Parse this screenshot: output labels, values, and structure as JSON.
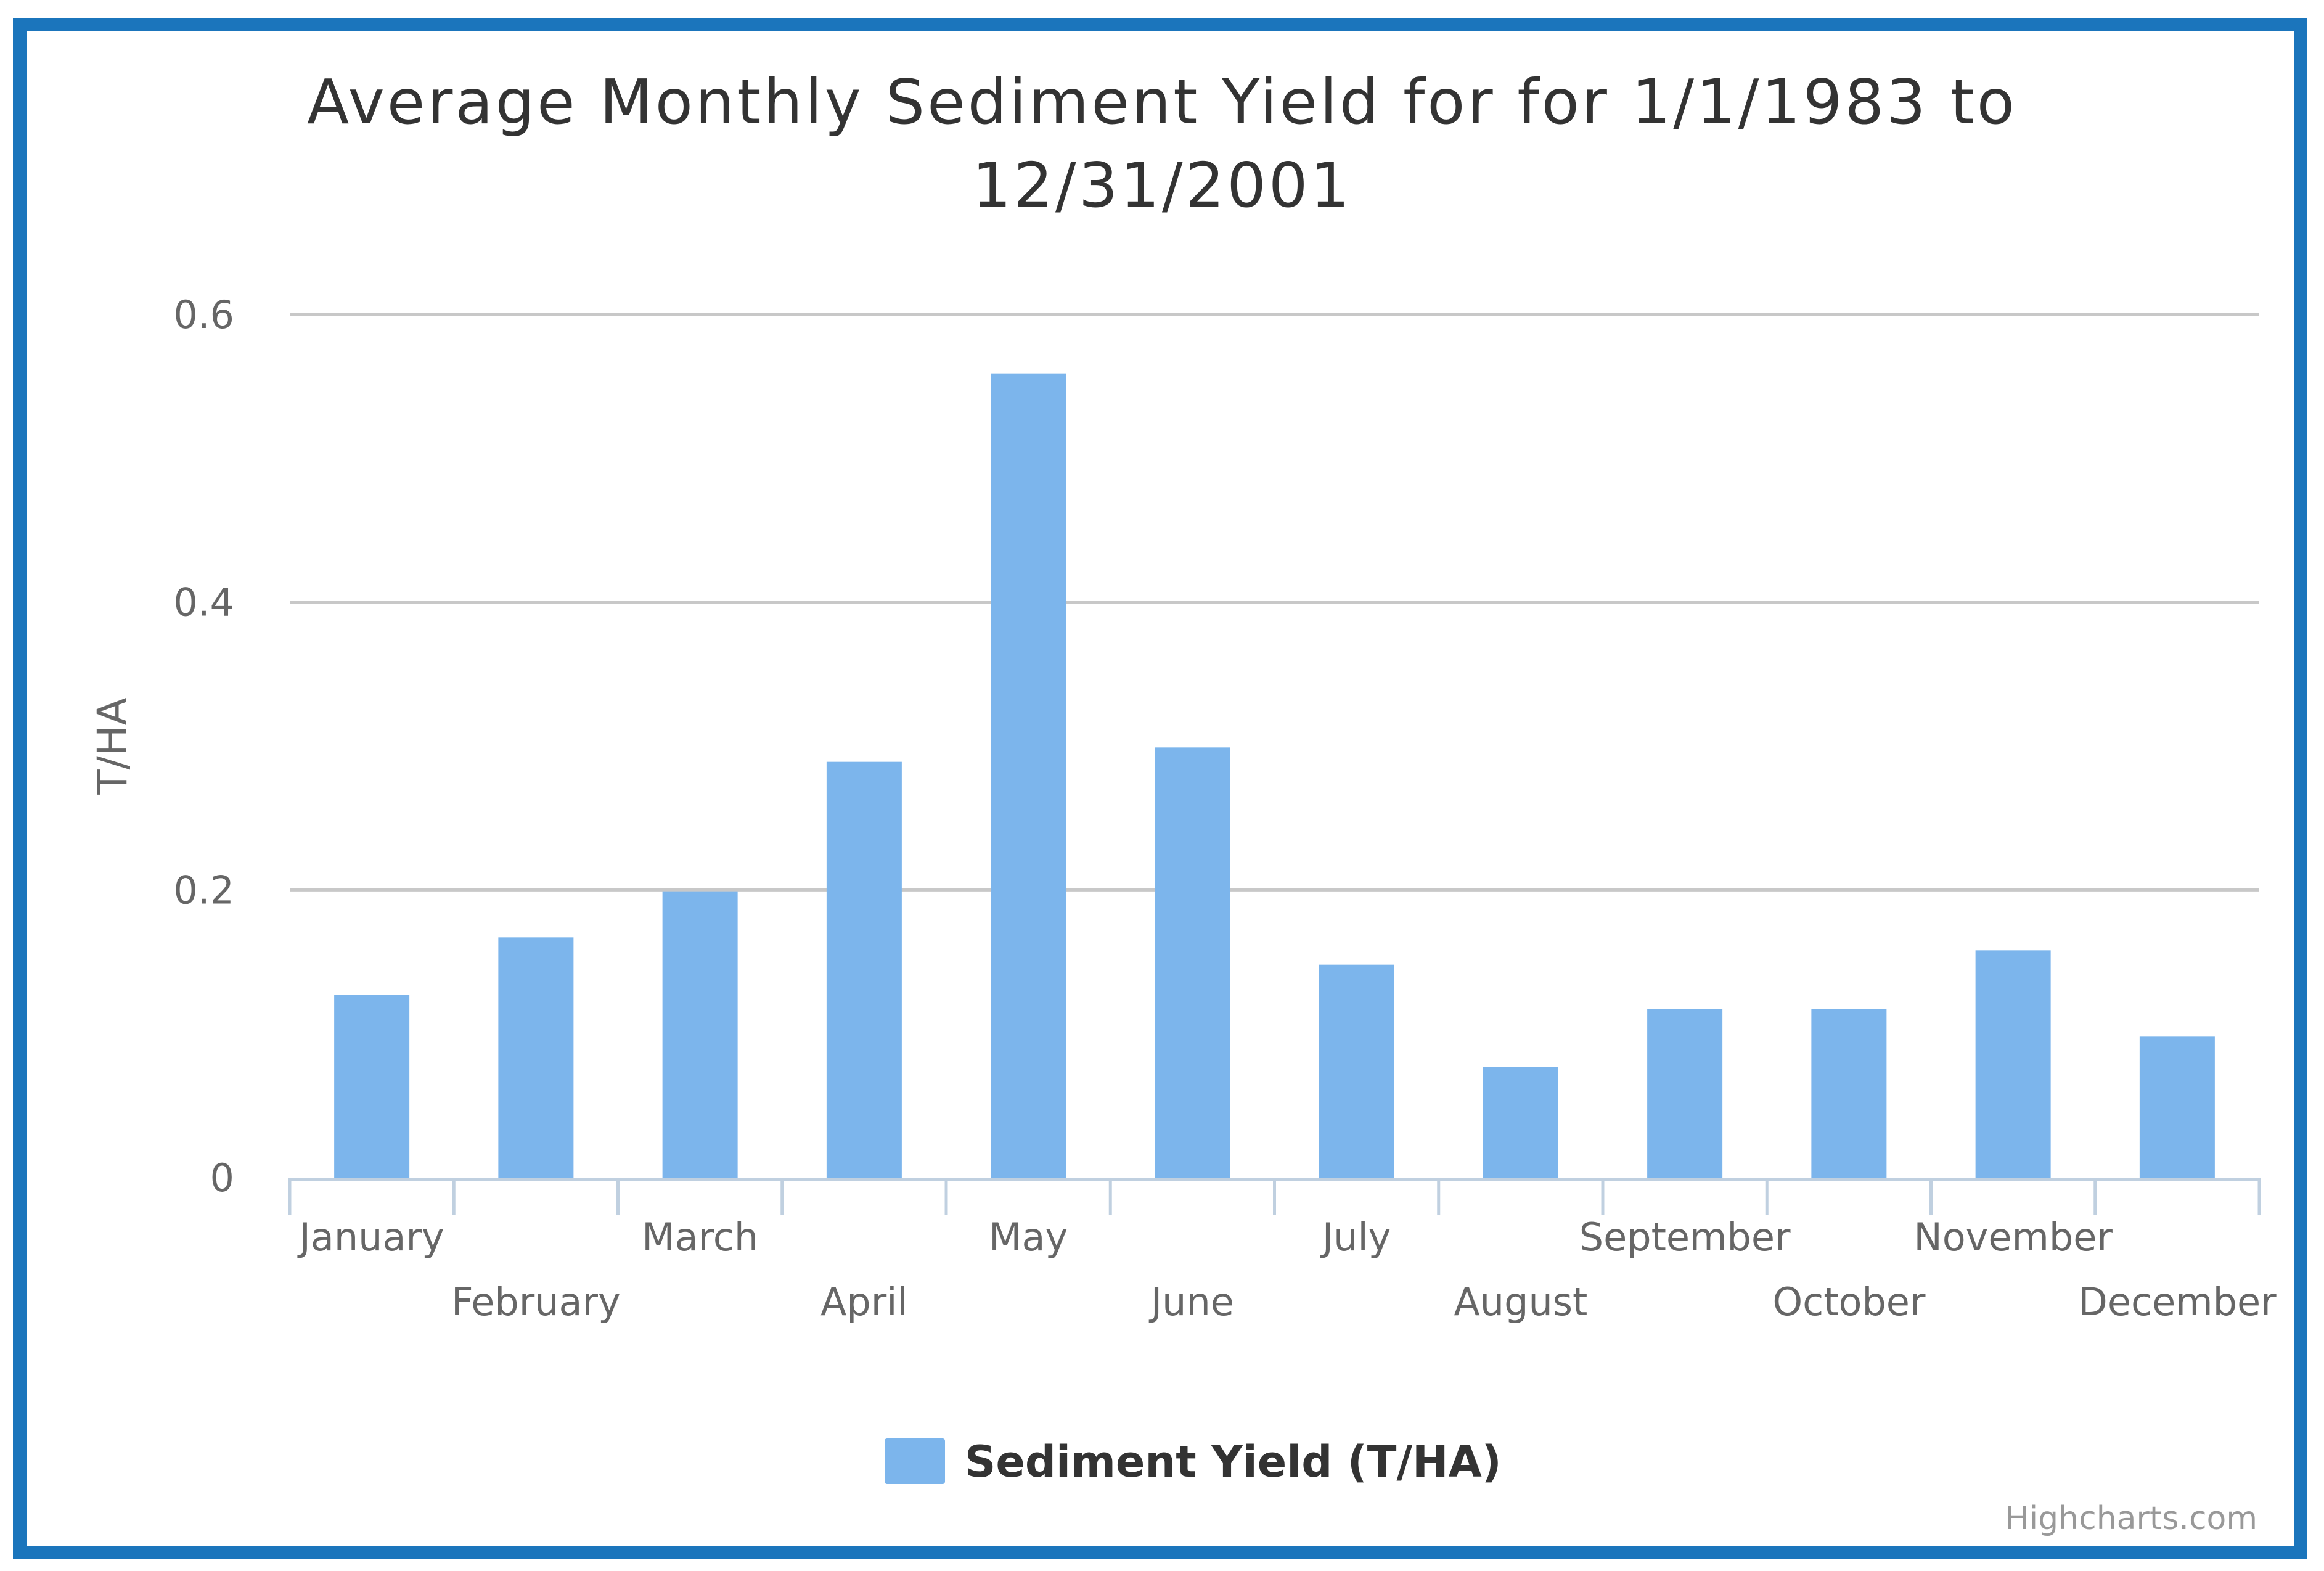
{
  "chart_data": {
    "type": "bar",
    "title": "Average Monthly Sediment Yield for for 1/1/1983 to 12/31/2001",
    "title_lines": [
      "Average Monthly Sediment Yield for for 1/1/1983 to",
      "12/31/2001"
    ],
    "ylabel": "T/HA",
    "xlabel": "",
    "ylim": [
      0,
      0.6
    ],
    "yticks": [
      0,
      0.2,
      0.4,
      0.6
    ],
    "ytick_labels": [
      "0",
      "0.2",
      "0.4",
      "0.6"
    ],
    "grid": true,
    "legend_position": "bottom-center",
    "categories": [
      "January",
      "February",
      "March",
      "April",
      "May",
      "June",
      "July",
      "August",
      "September",
      "October",
      "November",
      "December"
    ],
    "series": [
      {
        "name": "Sediment Yield (T/HA)",
        "color": "#7cb5ec",
        "values": [
          0.127,
          0.167,
          0.199,
          0.289,
          0.559,
          0.299,
          0.148,
          0.077,
          0.117,
          0.117,
          0.158,
          0.098
        ]
      }
    ],
    "credits": "Highcharts.com"
  },
  "colors": {
    "frame": "#1b75bc",
    "bar": "#7cb5ec",
    "grid": "#c8c8c8",
    "axis": "#c0d0e0"
  }
}
